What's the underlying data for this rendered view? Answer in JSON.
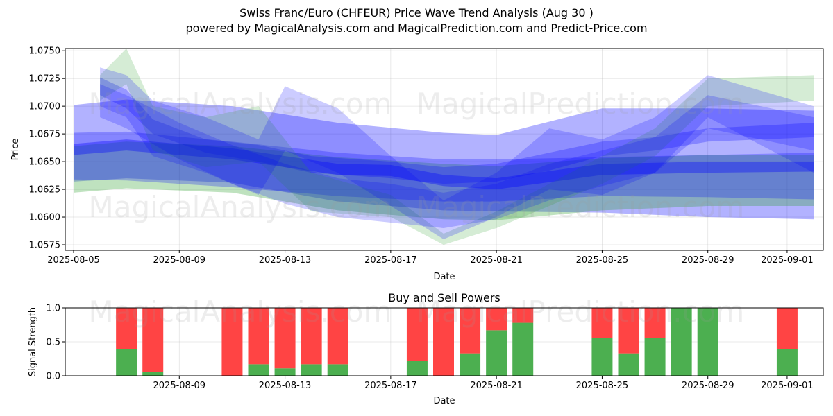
{
  "header": {
    "title": "Swiss Franc/Euro (CHFEUR) Price Wave Trend Analysis (Aug 30 )",
    "subtitle": "powered by MagicalAnalysis.com and MagicalPrediction.com and Predict-Price.com"
  },
  "watermarks": [
    "MagicalAnalysis.com",
    "MagicalPrediction.com"
  ],
  "colors": {
    "green": "#2ca02c",
    "blue": "#0000ff",
    "buy": "#4caf50",
    "sell": "#ff4444"
  },
  "chart_data": [
    {
      "type": "area",
      "title": "",
      "xlabel": "Date",
      "ylabel": "Price",
      "x_ticks": [
        "2025-08-05",
        "2025-08-09",
        "2025-08-13",
        "2025-08-17",
        "2025-08-21",
        "2025-08-25",
        "2025-08-29",
        "2025-09-01"
      ],
      "y_ticks": [
        "1.0575",
        "1.0600",
        "1.0625",
        "1.0650",
        "1.0675",
        "1.0700",
        "1.0725",
        "1.0750"
      ],
      "ylim": [
        1.057,
        1.0752
      ],
      "xlim": [
        "2025-08-05",
        "2025-09-02"
      ],
      "grid": true,
      "series": [
        {
          "color": "blue",
          "opacity": 0.3,
          "x": [
            "2025-08-05",
            "2025-08-07",
            "2025-08-11",
            "2025-08-15",
            "2025-08-19",
            "2025-08-21",
            "2025-08-25",
            "2025-08-29",
            "2025-09-02"
          ],
          "upper": [
            1.0701,
            1.0706,
            1.07,
            1.0685,
            1.0676,
            1.0674,
            1.0698,
            1.0698,
            1.0696
          ],
          "lower": [
            1.0632,
            1.0635,
            1.0631,
            1.0614,
            1.0606,
            1.0605,
            1.0604,
            1.06,
            1.0598
          ]
        },
        {
          "color": "green",
          "opacity": 0.3,
          "x": [
            "2025-08-05",
            "2025-08-07",
            "2025-08-11",
            "2025-08-15",
            "2025-08-19",
            "2025-08-21",
            "2025-08-25",
            "2025-08-29",
            "2025-09-02"
          ],
          "upper": [
            1.0664,
            1.0668,
            1.0664,
            1.0654,
            1.0648,
            1.0646,
            1.0653,
            1.0656,
            1.0656
          ],
          "lower": [
            1.0622,
            1.0626,
            1.0622,
            1.0606,
            1.0598,
            1.0597,
            1.0606,
            1.061,
            1.061
          ]
        },
        {
          "color": "blue",
          "opacity": 0.25,
          "x": [
            "2025-08-05",
            "2025-08-07",
            "2025-08-11",
            "2025-08-15",
            "2025-08-19",
            "2025-08-21",
            "2025-08-25",
            "2025-08-29",
            "2025-09-02"
          ],
          "upper": [
            1.0676,
            1.0677,
            1.0668,
            1.0658,
            1.0652,
            1.0652,
            1.0654,
            1.0656,
            1.0658
          ],
          "lower": [
            1.0634,
            1.0633,
            1.0627,
            1.0619,
            1.0614,
            1.0614,
            1.0619,
            1.0618,
            1.0616
          ]
        },
        {
          "color": "blue",
          "opacity": 0.35,
          "x": [
            "2025-08-05",
            "2025-08-07",
            "2025-08-11",
            "2025-08-15",
            "2025-08-17",
            "2025-08-19",
            "2025-08-21",
            "2025-08-25",
            "2025-08-29",
            "2025-09-02"
          ],
          "upper": [
            1.0666,
            1.067,
            1.0662,
            1.0648,
            1.0647,
            1.0638,
            1.0635,
            1.0648,
            1.065,
            1.065
          ],
          "lower": [
            1.0656,
            1.066,
            1.0652,
            1.0638,
            1.0637,
            1.0628,
            1.0625,
            1.0638,
            1.064,
            1.0641
          ]
        },
        {
          "color": "blue",
          "opacity": 0.25,
          "x": [
            "2025-08-06",
            "2025-08-07",
            "2025-08-08",
            "2025-08-10",
            "2025-08-12",
            "2025-08-14",
            "2025-08-17",
            "2025-08-19",
            "2025-08-21",
            "2025-08-23",
            "2025-08-25",
            "2025-08-27",
            "2025-08-29",
            "2025-09-02"
          ],
          "upper": [
            1.0726,
            1.0715,
            1.0688,
            1.067,
            1.0665,
            1.0655,
            1.065,
            1.0645,
            1.0648,
            1.0658,
            1.0668,
            1.0672,
            1.068,
            1.0685
          ],
          "lower": [
            1.071,
            1.0698,
            1.0675,
            1.0658,
            1.065,
            1.064,
            1.0635,
            1.063,
            1.0632,
            1.0642,
            1.0655,
            1.066,
            1.0668,
            1.0672
          ]
        },
        {
          "color": "green",
          "opacity": 0.2,
          "x": [
            "2025-08-06",
            "2025-08-07",
            "2025-08-08",
            "2025-08-10",
            "2025-08-12",
            "2025-08-14",
            "2025-08-17",
            "2025-08-19",
            "2025-08-21",
            "2025-08-23",
            "2025-08-25",
            "2025-08-27",
            "2025-08-29",
            "2025-09-02"
          ],
          "upper": [
            1.0728,
            1.0752,
            1.07,
            1.069,
            1.07,
            1.064,
            1.062,
            1.0585,
            1.0605,
            1.063,
            1.0655,
            1.068,
            1.0725,
            1.0728
          ],
          "lower": [
            1.0705,
            1.072,
            1.066,
            1.0645,
            1.065,
            1.0605,
            1.06,
            1.0575,
            1.059,
            1.061,
            1.063,
            1.0655,
            1.07,
            1.0705
          ]
        },
        {
          "color": "blue",
          "opacity": 0.2,
          "x": [
            "2025-08-06",
            "2025-08-07",
            "2025-08-08",
            "2025-08-10",
            "2025-08-12",
            "2025-08-13",
            "2025-08-15",
            "2025-08-17",
            "2025-08-19",
            "2025-08-21",
            "2025-08-23",
            "2025-08-25",
            "2025-08-27",
            "2025-08-29",
            "2025-09-02"
          ],
          "upper": [
            1.0735,
            1.0728,
            1.0705,
            1.069,
            1.067,
            1.0718,
            1.0698,
            1.0655,
            1.0615,
            1.064,
            1.068,
            1.067,
            1.069,
            1.0728,
            1.07
          ],
          "lower": [
            1.07,
            1.069,
            1.0655,
            1.064,
            1.062,
            1.066,
            1.064,
            1.061,
            1.058,
            1.06,
            1.0625,
            1.062,
            1.064,
            1.069,
            1.064
          ]
        },
        {
          "color": "blue",
          "opacity": 0.2,
          "x": [
            "2025-08-06",
            "2025-08-07",
            "2025-08-09",
            "2025-08-11",
            "2025-08-13",
            "2025-08-15",
            "2025-08-17",
            "2025-08-19",
            "2025-08-21",
            "2025-08-23",
            "2025-08-25",
            "2025-08-27",
            "2025-08-29",
            "2025-09-02"
          ],
          "upper": [
            1.072,
            1.071,
            1.0685,
            1.0665,
            1.0648,
            1.0635,
            1.063,
            1.0622,
            1.063,
            1.0648,
            1.066,
            1.0672,
            1.071,
            1.069
          ],
          "lower": [
            1.069,
            1.068,
            1.0652,
            1.063,
            1.0612,
            1.06,
            1.0595,
            1.059,
            1.0598,
            1.0615,
            1.0628,
            1.064,
            1.068,
            1.066
          ]
        }
      ]
    },
    {
      "type": "bar",
      "title": "Buy and Sell Powers",
      "xlabel": "Date",
      "ylabel": "Signal Strength",
      "x_ticks": [
        "2025-08-09",
        "2025-08-13",
        "2025-08-17",
        "2025-08-21",
        "2025-08-25",
        "2025-08-29",
        "2025-09-01"
      ],
      "y_ticks": [
        "0.0",
        "0.5",
        "1.0"
      ],
      "ylim": [
        0,
        1
      ],
      "xlim": [
        "2025-08-05",
        "2025-09-02"
      ],
      "categories": [
        "2025-08-07",
        "2025-08-08",
        "2025-08-11",
        "2025-08-12",
        "2025-08-13",
        "2025-08-14",
        "2025-08-15",
        "2025-08-18",
        "2025-08-19",
        "2025-08-20",
        "2025-08-21",
        "2025-08-22",
        "2025-08-25",
        "2025-08-26",
        "2025-08-27",
        "2025-08-28",
        "2025-08-29",
        "2025-09-01"
      ],
      "series": [
        {
          "color": "buy",
          "values": [
            0.39,
            0.06,
            0.0,
            0.17,
            0.11,
            0.17,
            0.17,
            0.22,
            0.0,
            0.33,
            0.67,
            0.78,
            0.56,
            0.33,
            0.56,
            1.0,
            1.0,
            0.39
          ]
        },
        {
          "color": "sell",
          "values": [
            0.61,
            0.94,
            1.0,
            0.83,
            0.89,
            0.83,
            0.83,
            0.78,
            1.0,
            0.67,
            0.33,
            0.22,
            0.44,
            0.67,
            0.44,
            0.0,
            0.0,
            0.61
          ]
        }
      ]
    }
  ]
}
